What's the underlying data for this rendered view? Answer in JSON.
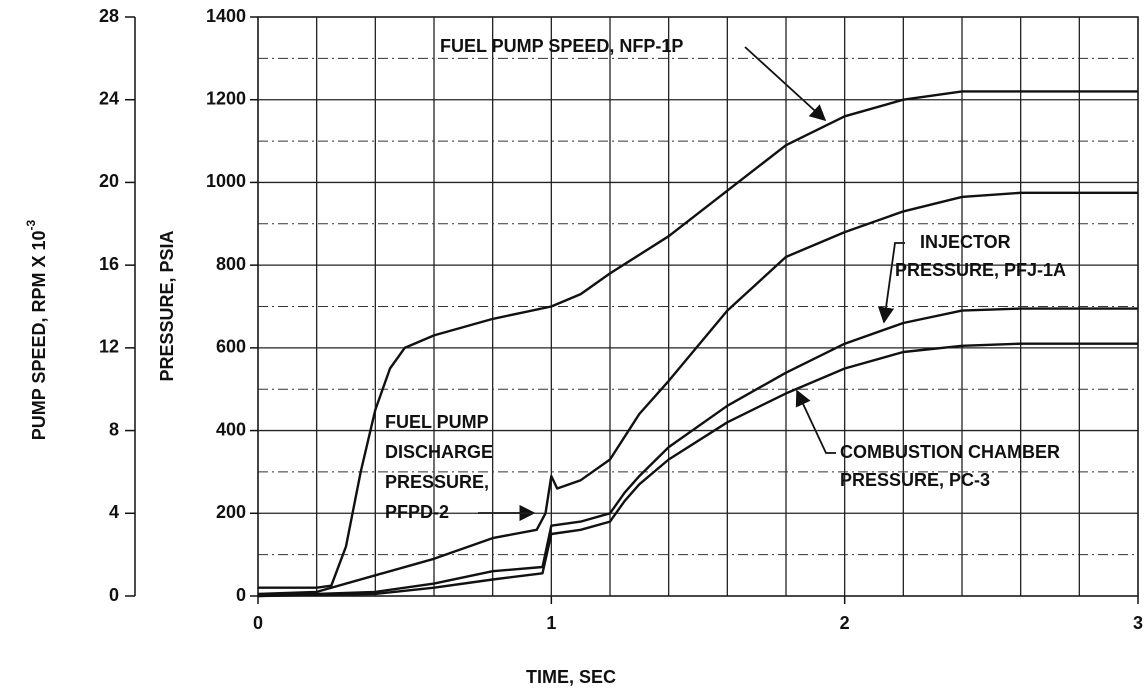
{
  "chart_data": {
    "type": "line",
    "xlabel": "TIME, SEC",
    "ylabel": "PRESSURE, PSIA",
    "y2label": "PUMP SPEED, RPM X 10",
    "y2label_exponent": "-3",
    "xlim": [
      0,
      3
    ],
    "xticks": [
      0,
      1,
      2,
      3
    ],
    "x_minor_grid": [
      0.2,
      0.4,
      0.6,
      0.8,
      1.2,
      1.4,
      1.6,
      1.8,
      2.2,
      2.4,
      2.6,
      2.8
    ],
    "ylim": [
      0,
      1400
    ],
    "yticks": [
      0,
      200,
      400,
      600,
      800,
      1000,
      1200,
      1400
    ],
    "y_minor_grid": [
      100,
      300,
      500,
      700,
      900,
      1100,
      1300
    ],
    "y2lim": [
      0,
      28
    ],
    "y2ticks": [
      0,
      4,
      8,
      12,
      16,
      20,
      24,
      28
    ],
    "grid": true,
    "series": [
      {
        "label_lines": [
          "FUEL PUMP SPEED, NFP-1P"
        ],
        "color": "#111111",
        "axis": "y2",
        "x": [
          0,
          0.2,
          0.25,
          0.3,
          0.35,
          0.4,
          0.45,
          0.5,
          0.6,
          0.8,
          1.0,
          1.1,
          1.2,
          1.4,
          1.6,
          1.8,
          2.0,
          2.2,
          2.4,
          2.6,
          3.0
        ],
        "values": [
          0.4,
          0.4,
          0.5,
          2.4,
          6,
          9,
          11,
          12,
          12.6,
          13.4,
          14,
          14.6,
          15.6,
          17.4,
          19.6,
          21.8,
          23.2,
          24,
          24.4,
          24.4,
          24.4
        ]
      },
      {
        "label_lines": [
          "FUEL PUMP",
          "DISCHARGE",
          "PRESSURE,",
          "PFPD-2"
        ],
        "color": "#111111",
        "x": [
          0,
          0.2,
          0.4,
          0.6,
          0.8,
          0.95,
          0.98,
          1.0,
          1.02,
          1.1,
          1.2,
          1.3,
          1.4,
          1.6,
          1.8,
          2.0,
          2.2,
          2.4,
          2.6,
          3.0
        ],
        "values": [
          5,
          10,
          50,
          90,
          140,
          160,
          200,
          290,
          260,
          280,
          330,
          440,
          520,
          690,
          820,
          880,
          930,
          965,
          975,
          975
        ]
      },
      {
        "label_lines": [
          "INJECTOR",
          "PRESSURE, PFJ-1A"
        ],
        "color": "#111111",
        "x": [
          0,
          0.4,
          0.6,
          0.8,
          0.97,
          1.0,
          1.1,
          1.2,
          1.25,
          1.3,
          1.4,
          1.6,
          1.8,
          2.0,
          2.2,
          2.4,
          2.6,
          3.0
        ],
        "values": [
          0,
          10,
          30,
          60,
          70,
          170,
          180,
          200,
          250,
          290,
          360,
          460,
          540,
          610,
          660,
          690,
          695,
          695
        ]
      },
      {
        "label_lines": [
          "COMBUSTION CHAMBER",
          "PRESSURE, PC-3"
        ],
        "color": "#111111",
        "x": [
          0,
          0.4,
          0.6,
          0.8,
          0.97,
          1.0,
          1.1,
          1.2,
          1.25,
          1.3,
          1.4,
          1.6,
          1.8,
          2.0,
          2.2,
          2.4,
          2.6,
          3.0
        ],
        "values": [
          0,
          5,
          20,
          40,
          55,
          150,
          160,
          180,
          230,
          270,
          330,
          420,
          490,
          550,
          590,
          605,
          610,
          610
        ]
      }
    ]
  }
}
